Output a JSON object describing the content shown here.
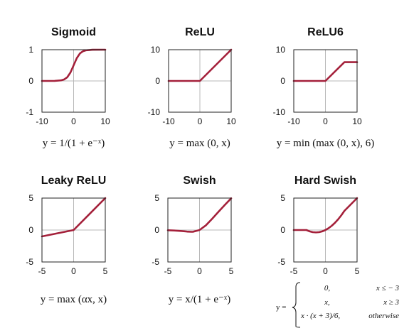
{
  "curve_color": "#a4203a",
  "chart_data": [
    {
      "type": "line",
      "title": "Sigmoid",
      "xlim": [
        -10,
        10
      ],
      "ylim": [
        -1,
        1
      ],
      "xticks": [
        "-10",
        "0",
        "10"
      ],
      "yticks": [
        "1",
        "0",
        "-1"
      ],
      "grid": "zero-lines",
      "function": "sigmoid",
      "x": [
        -10,
        -6,
        -4,
        -3,
        -2,
        -1,
        0,
        1,
        2,
        3,
        4,
        6,
        10
      ],
      "y": [
        0.0,
        0.002,
        0.018,
        0.047,
        0.119,
        0.269,
        0.5,
        0.731,
        0.881,
        0.953,
        0.982,
        0.998,
        1.0
      ],
      "formula": "y = 1/(1 + e⁻ˣ)"
    },
    {
      "type": "line",
      "title": "ReLU",
      "xlim": [
        -10,
        10
      ],
      "ylim": [
        -10,
        10
      ],
      "xticks": [
        "-10",
        "0",
        "10"
      ],
      "yticks": [
        "10",
        "0",
        "-10"
      ],
      "grid": "zero-lines",
      "function": "relu",
      "x": [
        -10,
        0,
        10
      ],
      "y": [
        0,
        0,
        10
      ],
      "formula": "y = max (0, x)"
    },
    {
      "type": "line",
      "title": "ReLU6",
      "xlim": [
        -10,
        10
      ],
      "ylim": [
        -10,
        10
      ],
      "xticks": [
        "-10",
        "0",
        "10"
      ],
      "yticks": [
        "10",
        "0",
        "-10"
      ],
      "grid": "zero-lines",
      "function": "relu6",
      "x": [
        -10,
        0,
        6,
        10
      ],
      "y": [
        0,
        0,
        6,
        6
      ],
      "formula": "y = min (max (0, x), 6)"
    },
    {
      "type": "line",
      "title": "Leaky ReLU",
      "xlim": [
        -5,
        5
      ],
      "ylim": [
        -5,
        5
      ],
      "xticks": [
        "-5",
        "0",
        "5"
      ],
      "yticks": [
        "5",
        "0",
        "-5"
      ],
      "grid": "zero-lines",
      "function": "leaky_relu",
      "x": [
        -5,
        0,
        5
      ],
      "y": [
        -1,
        0,
        5
      ],
      "formula": "y = max (αx, x)"
    },
    {
      "type": "line",
      "title": "Swish",
      "xlim": [
        -5,
        5
      ],
      "ylim": [
        -5,
        5
      ],
      "xticks": [
        "-5",
        "0",
        "5"
      ],
      "yticks": [
        "5",
        "0",
        "-5"
      ],
      "grid": "zero-lines",
      "function": "swish",
      "x": [
        -5,
        -4,
        -3,
        -2,
        -1.28,
        -1,
        0,
        1,
        2,
        3,
        4,
        5
      ],
      "y": [
        -0.033,
        -0.072,
        -0.142,
        -0.238,
        -0.278,
        -0.269,
        0,
        0.731,
        1.762,
        2.858,
        3.928,
        4.967
      ],
      "formula": "y = x/(1 + e⁻ˣ)"
    },
    {
      "type": "line",
      "title": "Hard Swish",
      "xlim": [
        -5,
        5
      ],
      "ylim": [
        -5,
        5
      ],
      "xticks": [
        "-5",
        "0",
        "5"
      ],
      "yticks": [
        "5",
        "0",
        "-5"
      ],
      "grid": "zero-lines",
      "function": "hard_swish",
      "x": [
        -5,
        -3,
        -2.5,
        -2,
        -1.5,
        -1,
        -0.5,
        0,
        0.5,
        1,
        1.5,
        2,
        2.5,
        3,
        5
      ],
      "y": [
        0,
        0,
        -0.208,
        -0.333,
        -0.375,
        -0.333,
        -0.208,
        0,
        0.292,
        0.667,
        1.125,
        1.667,
        2.292,
        3,
        5
      ],
      "formula": {
        "prefix": "y =",
        "cases": [
          {
            "value": "0,",
            "condition": "x ≤ − 3"
          },
          {
            "value": "x,",
            "condition": "x ≥ 3"
          },
          {
            "value": "x · (x + 3)/6,",
            "condition": "otherwise"
          }
        ]
      }
    }
  ]
}
